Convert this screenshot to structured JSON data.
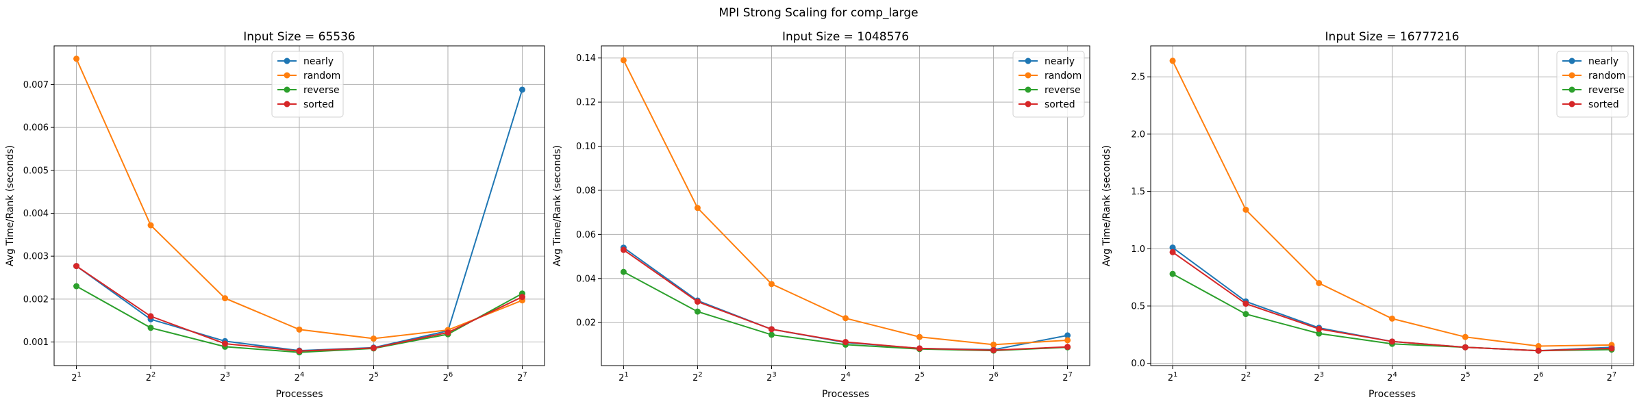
{
  "suptitle": "MPI Strong Scaling for comp_large",
  "colors": {
    "nearly": "#1f77b4",
    "random": "#ff7f0e",
    "reverse": "#2ca02c",
    "sorted": "#d62728"
  },
  "chart_data": [
    {
      "type": "line",
      "title": "Input Size = 65536",
      "xlabel": "Processes",
      "ylabel": "Avg Time/Rank (seconds)",
      "x": [
        2,
        4,
        8,
        16,
        32,
        64,
        128
      ],
      "x_scale": "log2",
      "x_tick_labels": [
        "2^1",
        "2^2",
        "2^3",
        "2^4",
        "2^5",
        "2^6",
        "2^7"
      ],
      "ylim": [
        0.00045,
        0.0079
      ],
      "yticks": [
        0.001,
        0.002,
        0.003,
        0.004,
        0.005,
        0.006,
        0.007
      ],
      "ytick_labels": [
        "0.001",
        "0.002",
        "0.003",
        "0.004",
        "0.005",
        "0.006",
        "0.007"
      ],
      "grid": true,
      "legend_position": "top-center",
      "series": [
        {
          "name": "nearly",
          "values": [
            0.00277,
            0.00153,
            0.00102,
            0.0008,
            0.00087,
            0.00126,
            0.00688
          ]
        },
        {
          "name": "random",
          "values": [
            0.0076,
            0.00372,
            0.00202,
            0.00129,
            0.00108,
            0.00128,
            0.00197
          ]
        },
        {
          "name": "reverse",
          "values": [
            0.0023,
            0.00133,
            0.00089,
            0.00076,
            0.00085,
            0.00118,
            0.00213
          ]
        },
        {
          "name": "sorted",
          "values": [
            0.00277,
            0.0016,
            0.00096,
            0.00079,
            0.00086,
            0.00122,
            0.00205
          ]
        }
      ]
    },
    {
      "type": "line",
      "title": "Input Size = 1048576",
      "xlabel": "Processes",
      "ylabel": "Avg Time/Rank (seconds)",
      "x": [
        2,
        4,
        8,
        16,
        32,
        64,
        128
      ],
      "x_scale": "log2",
      "x_tick_labels": [
        "2^1",
        "2^2",
        "2^3",
        "2^4",
        "2^5",
        "2^6",
        "2^7"
      ],
      "ylim": [
        0.0005,
        0.1455
      ],
      "yticks": [
        0.02,
        0.04,
        0.06,
        0.08,
        0.1,
        0.12,
        0.14
      ],
      "ytick_labels": [
        "0.02",
        "0.04",
        "0.06",
        "0.08",
        "0.10",
        "0.12",
        "0.14"
      ],
      "grid": true,
      "legend_position": "top-right",
      "series": [
        {
          "name": "nearly",
          "values": [
            0.054,
            0.03,
            0.017,
            0.011,
            0.0083,
            0.0077,
            0.0142
          ]
        },
        {
          "name": "random",
          "values": [
            0.139,
            0.072,
            0.0375,
            0.022,
            0.0135,
            0.01,
            0.012
          ]
        },
        {
          "name": "reverse",
          "values": [
            0.043,
            0.025,
            0.0145,
            0.01,
            0.008,
            0.0073,
            0.0088
          ]
        },
        {
          "name": "sorted",
          "values": [
            0.053,
            0.0295,
            0.017,
            0.0112,
            0.0083,
            0.0075,
            0.009
          ]
        }
      ]
    },
    {
      "type": "line",
      "title": "Input Size = 16777216",
      "xlabel": "Processes",
      "ylabel": "Avg Time/Rank (seconds)",
      "x": [
        2,
        4,
        8,
        16,
        32,
        64,
        128
      ],
      "x_scale": "log2",
      "x_tick_labels": [
        "2^1",
        "2^2",
        "2^3",
        "2^4",
        "2^5",
        "2^6",
        "2^7"
      ],
      "ylim": [
        -0.02,
        2.77
      ],
      "yticks": [
        0.0,
        0.5,
        1.0,
        1.5,
        2.0,
        2.5
      ],
      "ytick_labels": [
        "0.0",
        "0.5",
        "1.0",
        "1.5",
        "2.0",
        "2.5"
      ],
      "grid": true,
      "legend_position": "top-right",
      "series": [
        {
          "name": "nearly",
          "values": [
            1.01,
            0.54,
            0.31,
            0.19,
            0.14,
            0.11,
            0.14
          ]
        },
        {
          "name": "random",
          "values": [
            2.64,
            1.34,
            0.7,
            0.39,
            0.23,
            0.15,
            0.16
          ]
        },
        {
          "name": "reverse",
          "values": [
            0.78,
            0.43,
            0.26,
            0.17,
            0.14,
            0.11,
            0.12
          ]
        },
        {
          "name": "sorted",
          "values": [
            0.97,
            0.52,
            0.3,
            0.19,
            0.14,
            0.11,
            0.13
          ]
        }
      ]
    }
  ]
}
